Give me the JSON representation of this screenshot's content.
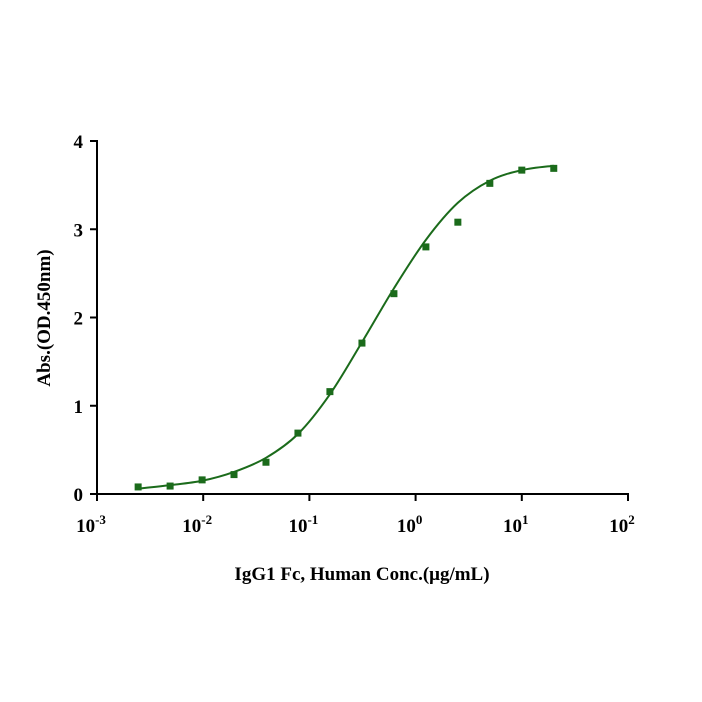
{
  "chart_data": {
    "type": "scatter",
    "xlabel": "IgG1 Fc, Human Conc.(μg/mL)",
    "ylabel": "Abs.(OD.450nm)",
    "xscale": "log",
    "xlim": [
      0.001,
      100
    ],
    "xticks": [
      {
        "value": 0.001,
        "label": "10",
        "exponent": "-3"
      },
      {
        "value": 0.01,
        "label": "10",
        "exponent": "-2"
      },
      {
        "value": 0.1,
        "label": "10",
        "exponent": "-1"
      },
      {
        "value": 1,
        "label": "10",
        "exponent": "0"
      },
      {
        "value": 10,
        "label": "10",
        "exponent": "1"
      },
      {
        "value": 100,
        "label": "10",
        "exponent": "2"
      }
    ],
    "ylim": [
      0,
      4
    ],
    "yticks": [
      0,
      1,
      2,
      3,
      4
    ],
    "series": [
      {
        "color": "#1b6b1b",
        "x": [
          0.00244,
          0.00488,
          0.00977,
          0.0195,
          0.039,
          0.078,
          0.156,
          0.3125,
          0.625,
          1.25,
          2.5,
          5,
          10,
          20
        ],
        "values": [
          0.08,
          0.09,
          0.16,
          0.22,
          0.36,
          0.69,
          1.16,
          1.71,
          2.27,
          2.8,
          3.08,
          3.52,
          3.67,
          3.69
        ]
      }
    ],
    "fit_curve": {
      "color": "#1b6b1b",
      "x": [
        0.00244,
        0.00488,
        0.00977,
        0.0195,
        0.039,
        0.078,
        0.156,
        0.3125,
        0.625,
        1.25,
        2.5,
        5,
        10,
        20
      ],
      "values": [
        0.06,
        0.1,
        0.15,
        0.25,
        0.41,
        0.68,
        1.13,
        1.72,
        2.33,
        2.88,
        3.3,
        3.55,
        3.67,
        3.72
      ]
    }
  }
}
